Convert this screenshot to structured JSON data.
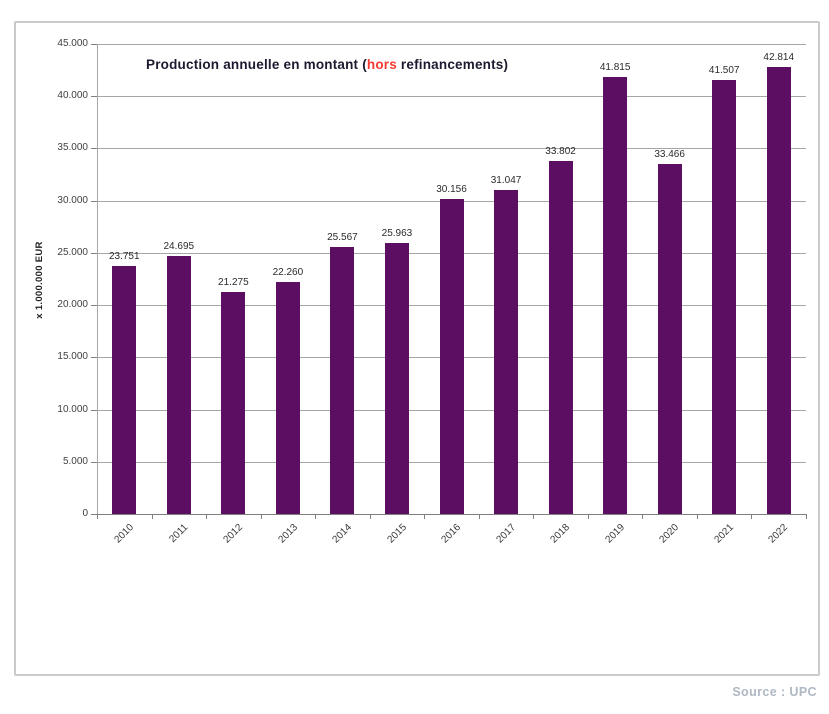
{
  "chart_data": {
    "type": "bar",
    "title": {
      "prefix": "Production annuelle en montant (",
      "highlight": "hors",
      "suffix": " refinancements)",
      "highlight_color": "#F43C32",
      "text_color": "#1B1B2F"
    },
    "ylabel": "x 1.000.000 EUR",
    "categories": [
      "2010",
      "2011",
      "2012",
      "2013",
      "2014",
      "2015",
      "2016",
      "2017",
      "2018",
      "2019",
      "2020",
      "2021",
      "2022"
    ],
    "values": [
      23751,
      24695,
      21275,
      22260,
      25567,
      25963,
      30156,
      31047,
      33802,
      41815,
      33466,
      41507,
      42814
    ],
    "value_labels": [
      "23.751",
      "24.695",
      "21.275",
      "22.260",
      "25.567",
      "25.963",
      "30.156",
      "31.047",
      "33.802",
      "41.815",
      "33.466",
      "41.507",
      "42.814"
    ],
    "ytick_labels": [
      "0",
      "5.000",
      "10.000",
      "15.000",
      "20.000",
      "25.000",
      "30.000",
      "35.000",
      "40.000",
      "45.000"
    ],
    "ylim": [
      0,
      45000
    ],
    "ytick_step": 5000,
    "grid": true,
    "legend": "none",
    "bar_color": "#5B0E62"
  },
  "footer": {
    "source_label": "Source : UPC"
  }
}
